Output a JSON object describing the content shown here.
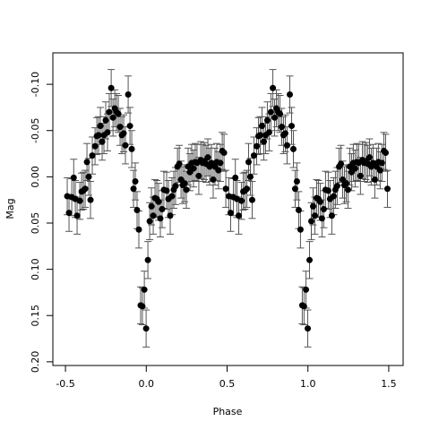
{
  "chart_data": {
    "type": "scatter",
    "xlabel": "Phase",
    "ylabel": "Mag",
    "xlim": [
      -0.578,
      1.589
    ],
    "ylim": [
      -0.134,
      0.204
    ],
    "y_reversed": true,
    "xticks": [
      -0.5,
      {
        "value": 0,
        "label": "0.0"
      },
      0.5,
      {
        "value": 1,
        "label": "1.0"
      },
      1.5
    ],
    "yticks": [
      {
        "value": -0.1,
        "label": "-0.10"
      },
      {
        "value": -0.05,
        "label": "-0.05"
      },
      {
        "value": 0,
        "label": "0.00"
      },
      {
        "value": 0.05,
        "label": "0.05"
      },
      {
        "value": 0.1,
        "label": "0.10"
      },
      {
        "value": 0.15,
        "label": "0.15"
      },
      {
        "value": 0.2,
        "label": "0.20"
      }
    ],
    "color": "#000000",
    "error": 0.02,
    "x": [
      -0.489,
      -0.478,
      -0.461,
      -0.449,
      -0.439,
      -0.428,
      -0.411,
      -0.4,
      -0.389,
      -0.378,
      -0.367,
      -0.356,
      -0.345,
      -0.334,
      -0.317,
      -0.306,
      -0.295,
      -0.284,
      -0.273,
      -0.262,
      -0.251,
      -0.24,
      -0.229,
      -0.217,
      -0.206,
      -0.195,
      -0.184,
      -0.173,
      -0.162,
      -0.151,
      -0.14,
      -0.129,
      -0.112,
      -0.101,
      -0.09,
      -0.079,
      -0.068,
      -0.057,
      -0.046,
      -0.035,
      -0.024,
      -0.012,
      -0.001,
      0.01,
      0.021,
      0.032,
      0.043,
      0.054,
      0.065,
      0.076,
      0.087,
      0.098,
      0.109,
      0.126,
      0.137,
      0.148,
      0.159,
      0.17,
      0.181,
      0.193,
      0.204,
      0.215,
      0.226,
      0.237,
      0.248,
      0.259,
      0.27,
      0.281,
      0.292,
      0.303,
      0.314,
      0.325,
      0.337,
      0.348,
      0.359,
      0.37,
      0.381,
      0.392,
      0.403,
      0.414,
      0.425,
      0.436,
      0.447,
      0.458,
      0.47,
      0.481,
      0.492,
      0.511,
      0.522,
      0.539,
      0.551,
      0.561,
      0.572,
      0.589,
      0.6,
      0.611,
      0.622,
      0.633,
      0.644,
      0.655,
      0.666,
      0.683,
      0.694,
      0.705,
      0.716,
      0.727,
      0.738,
      0.749,
      0.76,
      0.771,
      0.783,
      0.794,
      0.805,
      0.816,
      0.827,
      0.838,
      0.849,
      0.86,
      0.871,
      0.888,
      0.899,
      0.91,
      0.921,
      0.932,
      0.943,
      0.954,
      0.965,
      0.976,
      0.988,
      0.999,
      1.01,
      1.021,
      1.032,
      1.043,
      1.054,
      1.065,
      1.076,
      1.087,
      1.098,
      1.109,
      1.126,
      1.137,
      1.148,
      1.159,
      1.17,
      1.181,
      1.193,
      1.204,
      1.215,
      1.226,
      1.237,
      1.248,
      1.259,
      1.27,
      1.281,
      1.292,
      1.303,
      1.314,
      1.325,
      1.337,
      1.348,
      1.359,
      1.37,
      1.381,
      1.392,
      1.403,
      1.414,
      1.425,
      1.436,
      1.447,
      1.458,
      1.47,
      1.481,
      1.492
    ],
    "values": [
      0.021,
      0.039,
      0.022,
      0.001,
      0.024,
      0.042,
      0.026,
      0.016,
      0.015,
      0.013,
      -0.016,
      0,
      0.025,
      -0.023,
      -0.033,
      -0.044,
      -0.045,
      -0.055,
      -0.038,
      -0.045,
      -0.061,
      -0.048,
      -0.07,
      -0.096,
      -0.064,
      -0.074,
      -0.07,
      -0.068,
      -0.054,
      -0.045,
      -0.047,
      -0.034,
      -0.089,
      -0.055,
      -0.03,
      0.013,
      0.005,
      0.036,
      0.057,
      0.139,
      0.14,
      0.122,
      0.164,
      0.09,
      0.048,
      0.032,
      0.042,
      0.023,
      0.024,
      0.027,
      0.045,
      0.035,
      0.014,
      0.015,
      0.024,
      0.042,
      0.021,
      0.014,
      0.01,
      -0.011,
      -0.014,
      0.003,
      0.009,
      0.007,
      0.014,
      -0.011,
      -0.005,
      -0.015,
      -0.009,
      -0.016,
      -0.015,
      -0.001,
      -0.018,
      -0.015,
      -0.017,
      -0.014,
      -0.021,
      -0.011,
      -0.015,
      0.003,
      -0.011,
      -0.016,
      -0.007,
      -0.015,
      -0.028,
      -0.026,
      0.013,
      0.021,
      0.039,
      0.022,
      0.001,
      0.024,
      0.042,
      0.026,
      0.016,
      0.015,
      0.013,
      -0.016,
      0,
      0.025,
      -0.023,
      -0.033,
      -0.044,
      -0.045,
      -0.055,
      -0.038,
      -0.045,
      -0.061,
      -0.048,
      -0.07,
      -0.096,
      -0.064,
      -0.074,
      -0.07,
      -0.068,
      -0.054,
      -0.045,
      -0.047,
      -0.034,
      -0.089,
      -0.055,
      -0.03,
      0.013,
      0.005,
      0.036,
      0.057,
      0.139,
      0.14,
      0.122,
      0.164,
      0.09,
      0.048,
      0.032,
      0.042,
      0.023,
      0.024,
      0.027,
      0.045,
      0.035,
      0.014,
      0.015,
      0.024,
      0.042,
      0.021,
      0.014,
      0.01,
      -0.011,
      -0.014,
      0.003,
      0.009,
      0.007,
      0.014,
      -0.011,
      -0.005,
      -0.015,
      -0.009,
      -0.016,
      -0.015,
      -0.001,
      -0.018,
      -0.015,
      -0.017,
      -0.014,
      -0.021,
      -0.011,
      -0.015,
      0.003,
      -0.011,
      -0.016,
      -0.007,
      -0.015,
      -0.028,
      -0.026,
      0.013
    ]
  }
}
